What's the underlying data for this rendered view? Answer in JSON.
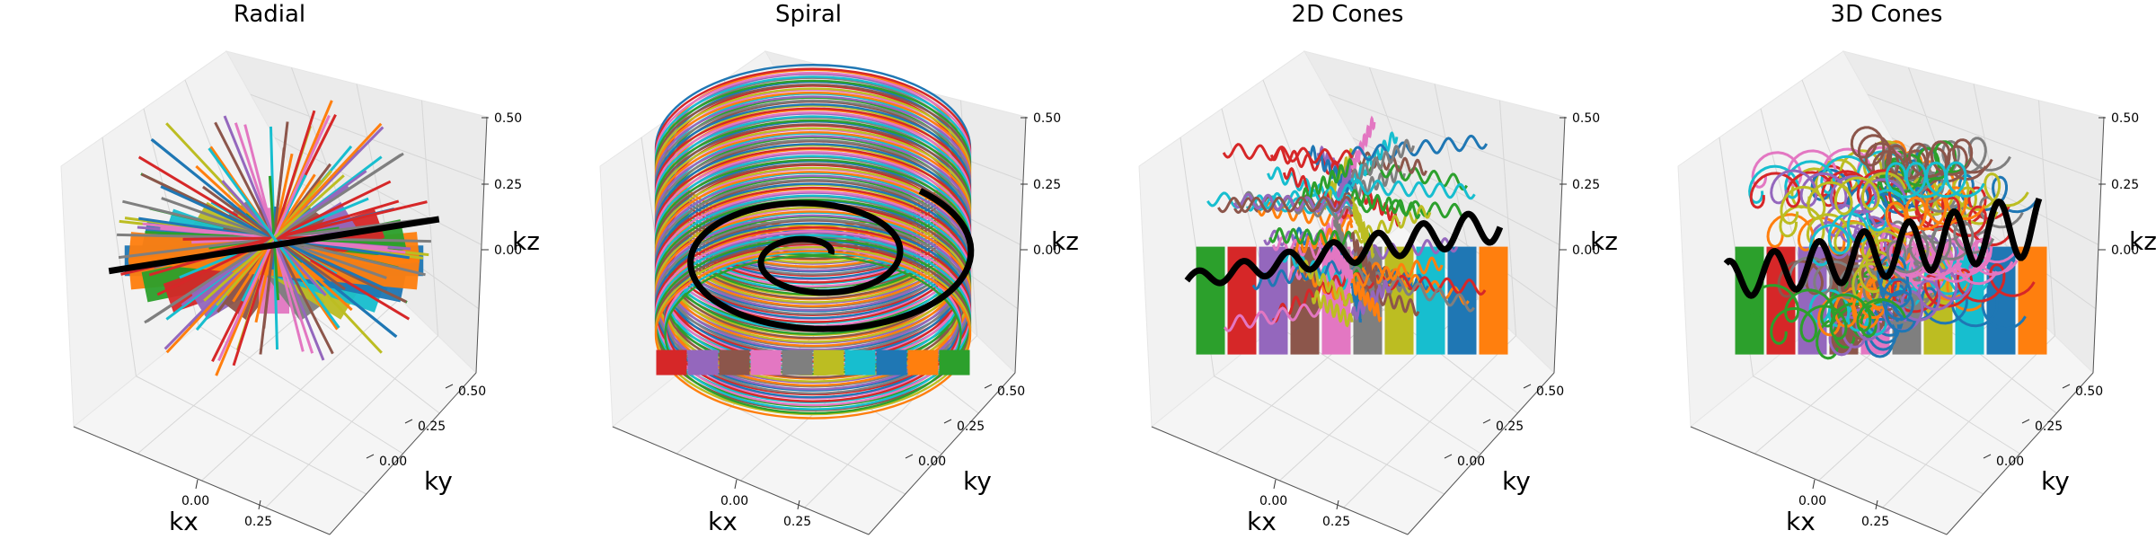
{
  "chart_data": [
    {
      "type": "3d-trajectory",
      "title": "Radial",
      "pattern": "radial",
      "xlabel": "kx",
      "ylabel": "ky",
      "zlabel": "kz",
      "x_ticks": [
        "0.00",
        "0.25"
      ],
      "y_ticks": [
        "0.00",
        "0.25",
        "0.50"
      ],
      "z_ticks": [
        "0.00",
        "0.25",
        "0.50"
      ],
      "xlim": [
        -0.5,
        0.5
      ],
      "ylim": [
        -0.5,
        0.5
      ],
      "zlim": [
        -0.5,
        0.5
      ]
    },
    {
      "type": "3d-trajectory",
      "title": "Spiral",
      "pattern": "spiral",
      "xlabel": "kx",
      "ylabel": "ky",
      "zlabel": "kz",
      "x_ticks": [
        "0.00",
        "0.25"
      ],
      "y_ticks": [
        "0.00",
        "0.25",
        "0.50"
      ],
      "z_ticks": [
        "0.00",
        "0.25",
        "0.50"
      ],
      "xlim": [
        -0.5,
        0.5
      ],
      "ylim": [
        -0.5,
        0.5
      ],
      "zlim": [
        -0.5,
        0.5
      ]
    },
    {
      "type": "3d-trajectory",
      "title": "2D Cones",
      "pattern": "cones2d",
      "xlabel": "kx",
      "ylabel": "ky",
      "zlabel": "kz",
      "x_ticks": [
        "0.00",
        "0.25"
      ],
      "y_ticks": [
        "0.00",
        "0.25",
        "0.50"
      ],
      "z_ticks": [
        "0.00",
        "0.25",
        "0.50"
      ],
      "xlim": [
        -0.5,
        0.5
      ],
      "ylim": [
        -0.5,
        0.5
      ],
      "zlim": [
        -0.5,
        0.5
      ]
    },
    {
      "type": "3d-trajectory",
      "title": "3D Cones",
      "pattern": "cones3d",
      "xlabel": "kx",
      "ylabel": "ky",
      "zlabel": "kz",
      "x_ticks": [
        "0.00",
        "0.25"
      ],
      "y_ticks": [
        "0.00",
        "0.25",
        "0.50"
      ],
      "z_ticks": [
        "0.00",
        "0.25",
        "0.50"
      ],
      "xlim": [
        -0.5,
        0.5
      ],
      "ylim": [
        -0.5,
        0.5
      ],
      "zlim": [
        -0.5,
        0.5
      ]
    }
  ],
  "colors": [
    "#1f77b4",
    "#ff7f0e",
    "#2ca02c",
    "#d62728",
    "#9467bd",
    "#8c564b",
    "#e377c2",
    "#7f7f7f",
    "#bcbd22",
    "#17becf"
  ],
  "highlight_color": "#000000"
}
